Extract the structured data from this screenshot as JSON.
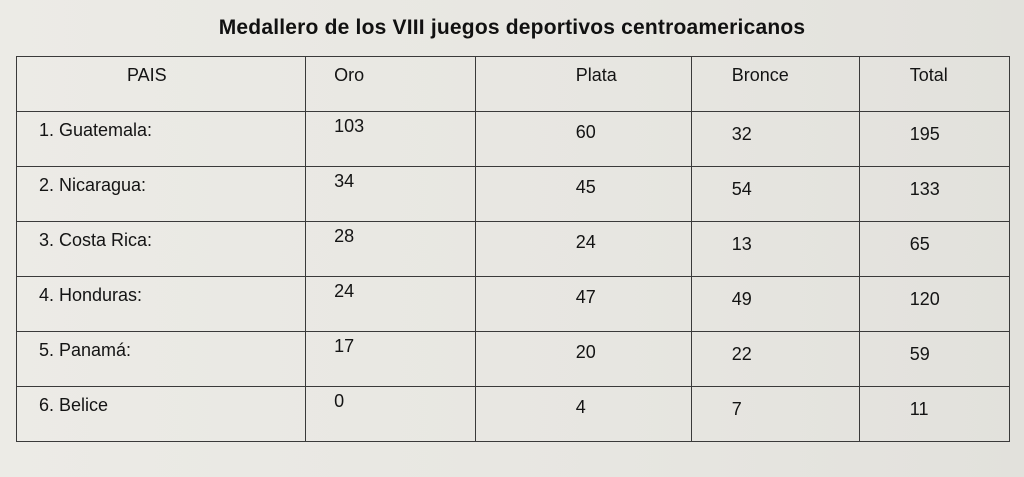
{
  "title": "Medallero de los  VIII juegos deportivos centroamericanos",
  "table": {
    "headers": {
      "pais": "PAIS",
      "oro": "Oro",
      "plata": "Plata",
      "bronce": "Bronce",
      "total": "Total"
    },
    "rows": [
      {
        "pais": "1. Guatemala:",
        "oro": "103",
        "plata": "60",
        "bronce": "32",
        "total": "195"
      },
      {
        "pais": "2. Nicaragua:",
        "oro": "34",
        "plata": "45",
        "bronce": "54",
        "total": "133"
      },
      {
        "pais": "3. Costa Rica:",
        "oro": "28",
        "plata": "24",
        "bronce": "13",
        "total": "65"
      },
      {
        "pais": "4. Honduras:",
        "oro": "24",
        "plata": "47",
        "bronce": "49",
        "total": "120"
      },
      {
        "pais": "5. Panamá:",
        "oro": "17",
        "plata": "20",
        "bronce": "22",
        "total": "59"
      },
      {
        "pais": "6. Belice",
        "oro": "0",
        "plata": "4",
        "bronce": "7",
        "total": "11"
      }
    ]
  }
}
